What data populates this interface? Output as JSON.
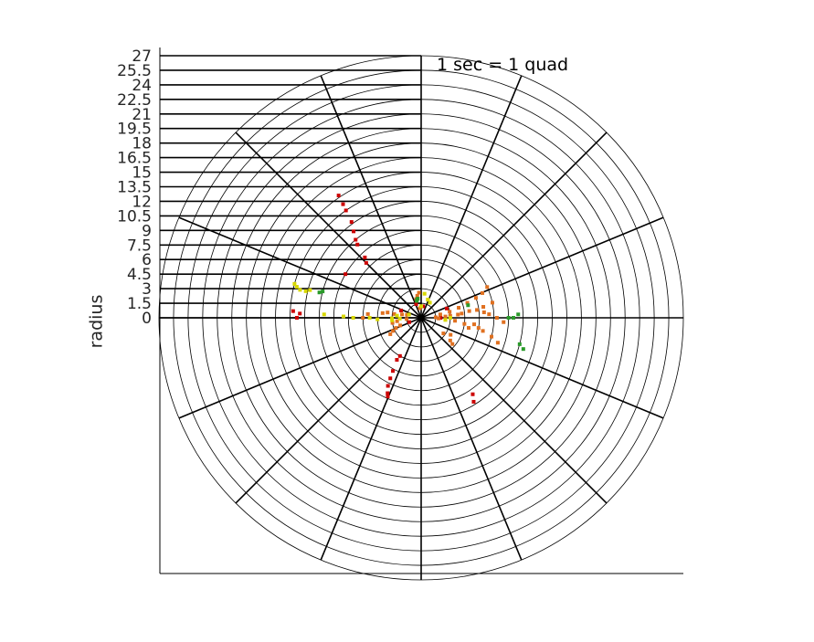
{
  "chart_data": {
    "type": "scatter",
    "coordinate_system": "polar",
    "title": "",
    "xlabel": "",
    "ylabel": "radius",
    "annotation": "1 sec = 1 quad",
    "rlim": [
      0,
      27
    ],
    "r_ticks": [
      "0",
      "1.5",
      "3",
      "4.5",
      "6",
      "7.5",
      "9",
      "10.5",
      "12",
      "13.5",
      "15",
      "16.5",
      "18",
      "19.5",
      "21",
      "22.5",
      "24",
      "25.5",
      "27"
    ],
    "angular_divisions_deg": [
      0,
      22.5,
      45,
      67.5,
      90,
      112.5,
      135,
      157.5,
      180,
      202.5,
      225,
      247.5,
      270,
      292.5,
      315,
      337.5
    ],
    "grid": true,
    "colors": {
      "red": "#cc0000",
      "orange": "#e07020",
      "yellow": "#d8d800",
      "green": "#2a9a2a"
    },
    "series": [
      {
        "name": "red",
        "points": [
          [
            15.2,
            124
          ],
          [
            14.2,
            124.5
          ],
          [
            13.5,
            125
          ],
          [
            12.2,
            126
          ],
          [
            11.3,
            128
          ],
          [
            10.5,
            130
          ],
          [
            10.0,
            131
          ],
          [
            8.5,
            133
          ],
          [
            8.0,
            135
          ],
          [
            9.0,
            150
          ],
          [
            13.2,
            177
          ],
          [
            12.5,
            178
          ],
          [
            12.8,
            180
          ],
          [
            5.0,
            240
          ],
          [
            4.5,
            241
          ],
          [
            6.2,
            242
          ],
          [
            7.0,
            243
          ],
          [
            7.8,
            244
          ],
          [
            8.5,
            246
          ],
          [
            8.8,
            247
          ],
          [
            10.2,
            302
          ],
          [
            9.5,
            304
          ],
          [
            2.0,
            0
          ],
          [
            2.8,
            20
          ],
          [
            1.2,
            80
          ],
          [
            1.5,
            110
          ],
          [
            2.2,
            160
          ],
          [
            1.3,
            200
          ]
        ]
      },
      {
        "name": "orange",
        "points": [
          [
            6.0,
            180
          ],
          [
            5.5,
            176
          ],
          [
            4.0,
            173
          ],
          [
            3.5,
            171
          ],
          [
            2.8,
            172
          ],
          [
            2.0,
            170
          ],
          [
            1.5,
            168
          ],
          [
            2.3,
            200
          ],
          [
            2.8,
            202
          ],
          [
            3.2,
            205
          ],
          [
            3.6,
            208
          ],
          [
            3.0,
            190
          ],
          [
            2.5,
            188
          ],
          [
            1.5,
            185
          ],
          [
            2.6,
            95
          ],
          [
            2.3,
            100
          ],
          [
            2.0,
            105
          ],
          [
            1.0,
            98
          ],
          [
            7.5,
            12
          ],
          [
            6.5,
            10
          ],
          [
            5.8,
            8
          ],
          [
            5.0,
            8
          ],
          [
            4.2,
            6
          ],
          [
            3.8,
            5
          ],
          [
            3.0,
            4
          ],
          [
            2.5,
            3
          ],
          [
            1.5,
            2
          ],
          [
            5.5,
            353
          ],
          [
            6.0,
            350
          ],
          [
            6.5,
            348
          ],
          [
            7.5,
            345
          ],
          [
            8.3,
            342
          ],
          [
            5.0,
            348
          ],
          [
            4.5,
            352
          ],
          [
            3.5,
            355
          ],
          [
            2.5,
            356
          ],
          [
            1.8,
            358
          ],
          [
            3.5,
            330
          ],
          [
            4.2,
            320
          ],
          [
            3.8,
            322
          ],
          [
            2.8,
            325
          ],
          [
            7.5,
            25
          ],
          [
            6.8,
            22
          ],
          [
            6.0,
            20
          ],
          [
            5.0,
            18
          ],
          [
            4.0,
            15
          ],
          [
            3.0,
            12
          ],
          [
            2.0,
            10
          ],
          [
            6.5,
            5
          ],
          [
            7.0,
            3
          ],
          [
            7.8,
            0
          ],
          [
            8.5,
            357
          ]
        ]
      },
      {
        "name": "yellow",
        "points": [
          [
            13.5,
            165
          ],
          [
            13.2,
            166
          ],
          [
            12.8,
            167
          ],
          [
            12.2,
            167
          ],
          [
            11.8,
            166
          ],
          [
            10.0,
            178
          ],
          [
            8.0,
            179
          ],
          [
            5.3,
            180
          ],
          [
            7.0,
            180
          ],
          [
            4.5,
            182
          ],
          [
            3.0,
            181
          ],
          [
            2.5,
            175
          ],
          [
            1.3,
            165
          ],
          [
            1.8,
            60
          ],
          [
            2.0,
            70
          ],
          [
            2.5,
            82
          ],
          [
            1.2,
            90
          ],
          [
            3.0,
            185
          ],
          [
            2.2,
            182
          ],
          [
            3.0,
            0
          ],
          [
            2.5,
            355
          ]
        ]
      },
      {
        "name": "green",
        "points": [
          [
            10.8,
            166
          ],
          [
            10.5,
            165
          ],
          [
            1.8,
            105
          ],
          [
            1.9,
            103
          ],
          [
            2.0,
            100
          ],
          [
            10.0,
            2
          ],
          [
            9.5,
            0
          ],
          [
            9.0,
            0
          ],
          [
            10.5,
            345
          ],
          [
            11.0,
            343
          ],
          [
            5.0,
            15
          ]
        ]
      }
    ]
  }
}
